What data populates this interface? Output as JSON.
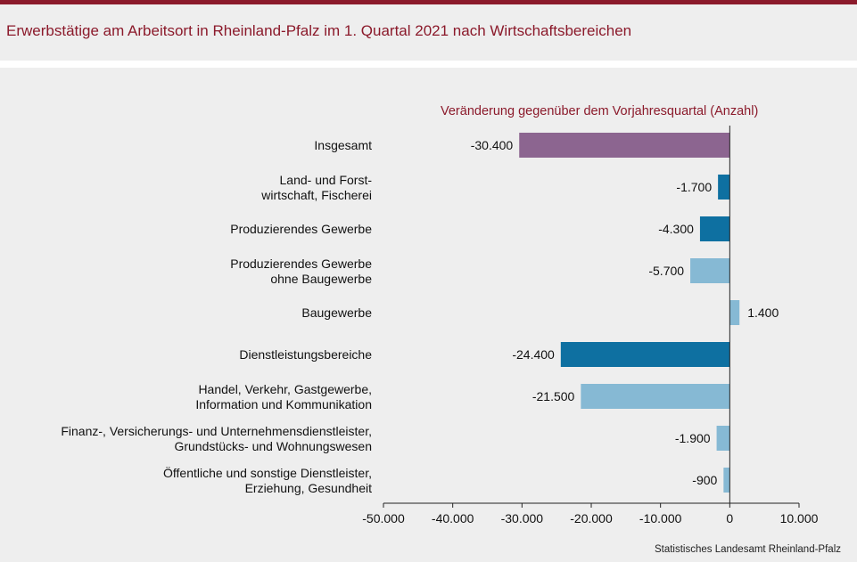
{
  "title": "Erwerbstätige am Arbeitsort in Rheinland-Pfalz im 1. Quartal 2021 nach Wirtschaftsbereichen",
  "source": "Statistisches Landesamt Rheinland-Pfalz",
  "chart_data": {
    "type": "bar",
    "orientation": "horizontal",
    "subtitle": "Veränderung gegenüber dem Vorjahresquartal (Anzahl)",
    "categories": [
      [
        "Insgesamt"
      ],
      [
        "Land- und Forst-",
        "wirtschaft, Fischerei"
      ],
      [
        "Produzierendes Gewerbe"
      ],
      [
        "Produzierendes Gewerbe",
        "ohne Baugewerbe"
      ],
      [
        "Baugewerbe"
      ],
      [
        "Dienstleistungsbereiche"
      ],
      [
        "Handel, Verkehr, Gastgewerbe,",
        "Information und Kommunikation"
      ],
      [
        "Finanz-, Versicherungs- und Unternehmensdienstleister,",
        "Grundstücks- und Wohnungswesen"
      ],
      [
        "Öffentliche und sonstige Dienstleister,",
        "Erziehung, Gesundheit"
      ]
    ],
    "values": [
      -30400,
      -1700,
      -4300,
      -5700,
      1400,
      -24400,
      -21500,
      -1900,
      -900
    ],
    "value_labels": [
      "-30.400",
      "-1.700",
      "-4.300",
      "-5.700",
      "1.400",
      "-24.400",
      "-21.500",
      "-1.900",
      "-900"
    ],
    "bar_colors": [
      "#8c6590",
      "#0e70a1",
      "#0e70a1",
      "#86b9d4",
      "#86b9d4",
      "#0e70a1",
      "#86b9d4",
      "#86b9d4",
      "#86b9d4"
    ],
    "xlim": [
      -50000,
      10000
    ],
    "xticks": [
      -50000,
      -40000,
      -30000,
      -20000,
      -10000,
      0,
      10000
    ],
    "xtick_labels": [
      "-50.000",
      "-40.000",
      "-30.000",
      "-20.000",
      "-10.000",
      "0",
      "10.000"
    ],
    "grid": false
  }
}
